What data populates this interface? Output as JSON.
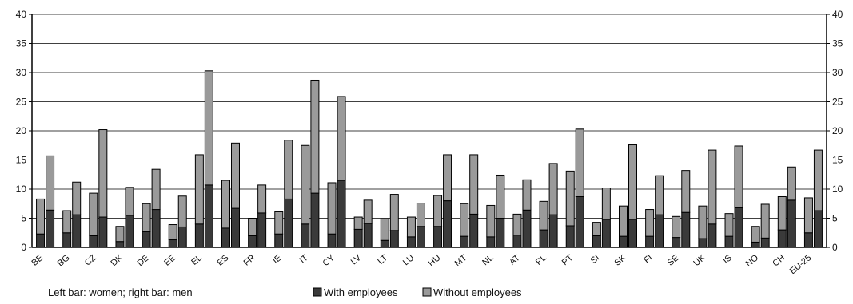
{
  "chart_data": {
    "type": "bar",
    "stacked": true,
    "grouping": "paired (women, men) per country",
    "categories": [
      "BE",
      "BG",
      "CZ",
      "DK",
      "DE",
      "EE",
      "EL",
      "ES",
      "FR",
      "IE",
      "IT",
      "CY",
      "LV",
      "LT",
      "LU",
      "HU",
      "MT",
      "NL",
      "AT",
      "PL",
      "PT",
      "SI",
      "SK",
      "FI",
      "SE",
      "UK",
      "IS",
      "NO",
      "CH",
      "EU-25"
    ],
    "series": [
      {
        "name": "With employees",
        "color": "#3a3a3a"
      },
      {
        "name": "Without employees",
        "color": "#9a9a9a"
      }
    ],
    "women_with_employees": [
      2.3,
      2.5,
      2.0,
      1.0,
      2.7,
      1.3,
      4.0,
      3.3,
      2.0,
      2.3,
      4.0,
      2.3,
      3.1,
      1.2,
      1.8,
      3.6,
      1.9,
      1.8,
      2.1,
      3.0,
      3.7,
      2.0,
      1.9,
      1.9,
      1.7,
      1.5,
      1.9,
      0.9,
      3.0,
      2.5
    ],
    "women_without_employees": [
      6.0,
      3.8,
      7.3,
      2.6,
      4.8,
      2.6,
      11.9,
      8.2,
      3.0,
      3.8,
      13.5,
      8.8,
      2.1,
      3.7,
      3.4,
      5.3,
      5.6,
      5.4,
      3.6,
      4.9,
      9.4,
      2.3,
      5.2,
      4.6,
      3.6,
      5.6,
      3.9,
      2.7,
      5.7,
      6.0
    ],
    "men_with_employees": [
      6.4,
      5.6,
      5.2,
      5.5,
      6.5,
      3.5,
      10.7,
      6.7,
      5.9,
      8.3,
      9.3,
      11.5,
      4.1,
      2.9,
      3.6,
      8.0,
      5.7,
      5.0,
      6.4,
      5.6,
      8.7,
      4.8,
      4.8,
      5.6,
      6.0,
      4.0,
      6.8,
      1.6,
      8.1,
      6.3
    ],
    "men_without_employees": [
      9.3,
      5.6,
      15.0,
      4.8,
      6.9,
      5.3,
      19.6,
      11.2,
      4.8,
      10.1,
      19.4,
      14.4,
      4.0,
      6.2,
      4.0,
      7.9,
      10.2,
      7.4,
      5.2,
      8.8,
      11.6,
      5.4,
      12.8,
      6.7,
      7.2,
      12.7,
      10.6,
      5.8,
      5.7,
      10.4
    ],
    "ylim": [
      0,
      40
    ],
    "yticks": [
      0,
      5,
      10,
      15,
      20,
      25,
      30,
      35,
      40
    ],
    "xlabel": "",
    "ylabel": "",
    "grid": "horizontal",
    "note": "Left bar: women; right bar: men"
  },
  "legend": {
    "items": [
      {
        "label": "With employees",
        "color": "#3a3a3a"
      },
      {
        "label": "Without employees",
        "color": "#9a9a9a"
      }
    ]
  }
}
